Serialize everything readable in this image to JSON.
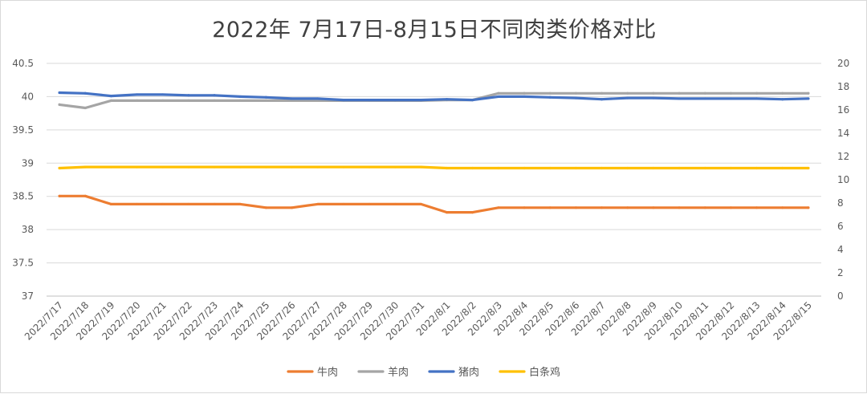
{
  "chart_data": {
    "type": "line",
    "title": "2022年 7月17日-8月15日不同肉类价格对比",
    "x": [
      "2022/7/17",
      "2022/7/18",
      "2022/7/19",
      "2022/7/20",
      "2022/7/21",
      "2022/7/22",
      "2022/7/23",
      "2022/7/24",
      "2022/7/25",
      "2022/7/26",
      "2022/7/27",
      "2022/7/28",
      "2022/7/29",
      "2022/7/30",
      "2022/7/31",
      "2022/8/1",
      "2022/8/2",
      "2022/8/3",
      "2022/8/4",
      "2022/8/5",
      "2022/8/6",
      "2022/8/7",
      "2022/8/8",
      "2022/8/9",
      "2022/8/10",
      "2022/8/11",
      "2022/8/12",
      "2022/8/13",
      "2022/8/14",
      "2022/8/15"
    ],
    "left_axis": {
      "min": 37,
      "max": 40.5,
      "ticks": [
        "37",
        "37.5",
        "38",
        "38.5",
        "39",
        "39.5",
        "40",
        "40.5"
      ]
    },
    "right_axis": {
      "min": 0,
      "max": 20,
      "ticks": [
        "0",
        "2",
        "4",
        "6",
        "8",
        "10",
        "12",
        "14",
        "16",
        "18",
        "20"
      ]
    },
    "series": [
      {
        "name": "牛肉",
        "axis": "right",
        "color": "#ED7D31",
        "values": [
          8.6,
          8.6,
          7.9,
          7.9,
          7.9,
          7.9,
          7.9,
          7.9,
          7.6,
          7.6,
          7.9,
          7.9,
          7.9,
          7.9,
          7.9,
          7.2,
          7.2,
          7.6,
          7.6,
          7.6,
          7.6,
          7.6,
          7.6,
          7.6,
          7.6,
          7.6,
          7.6,
          7.6,
          7.6,
          7.6
        ]
      },
      {
        "name": "羊肉",
        "axis": "left",
        "color": "#A5A5A5",
        "values": [
          39.88,
          39.83,
          39.94,
          39.94,
          39.94,
          39.94,
          39.94,
          39.94,
          39.94,
          39.94,
          39.94,
          39.94,
          39.94,
          39.94,
          39.94,
          39.95,
          39.95,
          40.05,
          40.05,
          40.05,
          40.05,
          40.05,
          40.05,
          40.05,
          40.05,
          40.05,
          40.05,
          40.05,
          40.05,
          40.05
        ]
      },
      {
        "name": "猪肉",
        "axis": "left",
        "color": "#4472C4",
        "values": [
          40.06,
          40.05,
          40.01,
          40.03,
          40.03,
          40.02,
          40.02,
          40.0,
          39.99,
          39.97,
          39.97,
          39.95,
          39.95,
          39.95,
          39.95,
          39.96,
          39.95,
          40.0,
          40.0,
          39.99,
          39.98,
          39.96,
          39.98,
          39.98,
          39.97,
          39.97,
          39.97,
          39.97,
          39.96,
          39.97
        ]
      },
      {
        "name": "白条鸡",
        "axis": "right",
        "color": "#FFC000",
        "values": [
          11.0,
          11.1,
          11.1,
          11.1,
          11.1,
          11.1,
          11.1,
          11.1,
          11.1,
          11.1,
          11.1,
          11.1,
          11.1,
          11.1,
          11.1,
          11.0,
          11.0,
          11.0,
          11.0,
          11.0,
          11.0,
          11.0,
          11.0,
          11.0,
          11.0,
          11.0,
          11.0,
          11.0,
          11.0,
          11.0
        ]
      }
    ],
    "grid": true,
    "legend_position": "bottom"
  }
}
